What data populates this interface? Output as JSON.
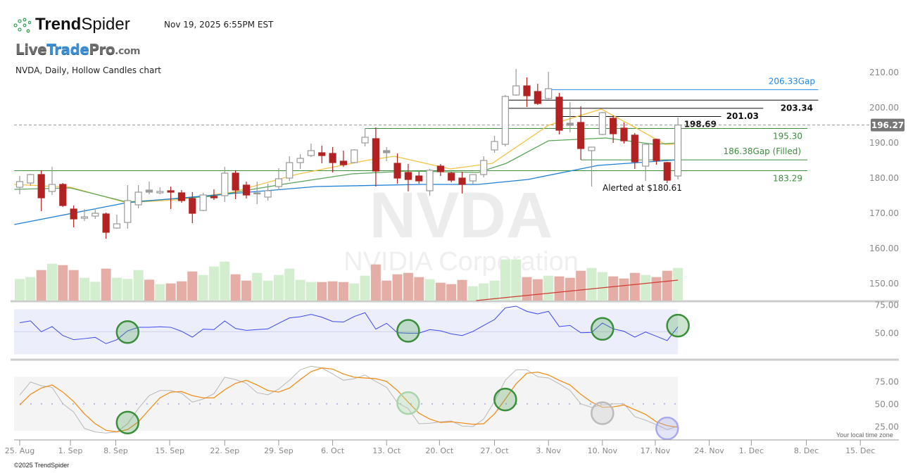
{
  "header": {
    "brand_bold": "Trend",
    "brand_light": "Spider",
    "timestamp": "Nov 19, 2025 6:55PM EST",
    "site_logo": {
      "live": "Live",
      "trade": "Trade",
      "pro": "Pro",
      "com": ".com"
    },
    "chart_title": "NVDA, Daily, Hollow Candles chart"
  },
  "watermark": {
    "symbol": "NVDA",
    "company": "NVIDIA Corporation"
  },
  "alert_text": "Alerted at $180.61",
  "footer": {
    "copyright": "©2025 TrendSpider",
    "timezone_note": "Your local time zone"
  },
  "colors": {
    "up_candle": "#999999",
    "down_candle": "#b22222",
    "neutral_candle": "#9a9a9a",
    "ma_fast": "#f5c342",
    "ma_mid": "#5aa55a",
    "ma_slow": "#1e7fd6",
    "vol_up": "#d3edcf",
    "vol_down": "#e4aea6",
    "vol_ma": "#d03a30",
    "rsi": "#3b47f0",
    "stoch_k": "#b8b8b8",
    "stoch_d": "#f08a10",
    "level_blue": "#1e88e5",
    "level_black": "#111111",
    "level_green": "#3d8b3d",
    "price_badge": "#777777"
  },
  "chart_data": {
    "type": "candlestick",
    "symbol": "NVDA",
    "interval": "Daily",
    "price_axis": {
      "range": [
        145,
        212
      ],
      "ticks": [
        "210.00",
        "200.00",
        "190.00",
        "180.00",
        "170.00",
        "160.00",
        "150.00"
      ],
      "tick_values": [
        210,
        200,
        190,
        180,
        170,
        160,
        150
      ]
    },
    "current_price": {
      "value": 196.27,
      "label": "196.27"
    },
    "x_ticks": [
      {
        "label": "25. Aug",
        "bar": 1
      },
      {
        "label": "1. Sep",
        "bar": 5.7
      },
      {
        "label": "8. Sep",
        "bar": 9.9
      },
      {
        "label": "15. Sep",
        "bar": 14.9
      },
      {
        "label": "22. Sep",
        "bar": 20
      },
      {
        "label": "29. Sep",
        "bar": 25
      },
      {
        "label": "6. Oct",
        "bar": 30
      },
      {
        "label": "13. Oct",
        "bar": 35
      },
      {
        "label": "20. Oct",
        "bar": 39.9
      },
      {
        "label": "27. Oct",
        "bar": 45
      },
      {
        "label": "3. Nov",
        "bar": 50
      },
      {
        "label": "10. Nov",
        "bar": 55
      },
      {
        "label": "17. Nov",
        "bar": 59.9
      },
      {
        "label": "24. Nov",
        "bar": 64.9
      },
      {
        "label": "1. Dec",
        "bar": 68.8
      },
      {
        "label": "8. Dec",
        "bar": 73.9
      },
      {
        "label": "15. Dec",
        "bar": 78.9
      }
    ],
    "candles_ohlc": [
      [
        178.6,
        181.8,
        176.6,
        180.2
      ],
      [
        179.8,
        182.4,
        179.0,
        182.2
      ],
      [
        182.2,
        183.4,
        171.8,
        175.6
      ],
      [
        177.4,
        184.4,
        176.4,
        179.4
      ],
      [
        179.4,
        179.8,
        173.0,
        173.4
      ],
      [
        172.4,
        173.4,
        167.2,
        169.6
      ],
      [
        169.8,
        172.4,
        169.0,
        170.2
      ],
      [
        170.4,
        172.6,
        169.6,
        171.2
      ],
      [
        171.0,
        171.4,
        164.0,
        165.8
      ],
      [
        167.0,
        170.8,
        166.8,
        168.2
      ],
      [
        168.6,
        179.2,
        166.8,
        174.8
      ],
      [
        173.6,
        179.2,
        172.6,
        177.2
      ],
      [
        177.2,
        180.2,
        176.6,
        177.8
      ],
      [
        177.0,
        178.6,
        176.6,
        177.4
      ],
      [
        177.6,
        178.8,
        172.4,
        177.2
      ],
      [
        177.0,
        177.8,
        174.2,
        174.8
      ],
      [
        175.4,
        177.2,
        168.4,
        171.2
      ],
      [
        172.0,
        177.0,
        171.8,
        176.4
      ],
      [
        176.0,
        178.0,
        175.0,
        175.6
      ],
      [
        176.2,
        184.4,
        174.4,
        182.6
      ],
      [
        182.6,
        183.4,
        175.2,
        177.8
      ],
      [
        179.2,
        180.2,
        175.4,
        176.4
      ],
      [
        176.8,
        180.2,
        173.8,
        177.0
      ],
      [
        175.8,
        179.6,
        174.8,
        177.6
      ],
      [
        178.8,
        184.0,
        177.8,
        181.0
      ],
      [
        181.2,
        187.4,
        180.4,
        185.6
      ],
      [
        185.6,
        188.0,
        183.8,
        186.8
      ],
      [
        187.6,
        191.0,
        187.2,
        189.0
      ],
      [
        188.4,
        190.4,
        185.4,
        187.6
      ],
      [
        188.2,
        190.0,
        182.8,
        185.6
      ],
      [
        186.0,
        189.0,
        184.4,
        185.0
      ],
      [
        185.6,
        189.4,
        185.4,
        189.2
      ],
      [
        191.2,
        195.2,
        190.2,
        192.8
      ],
      [
        192.4,
        195.6,
        178.8,
        183.2
      ],
      [
        188.4,
        190.0,
        186.0,
        189.0
      ],
      [
        185.4,
        188.2,
        179.6,
        181.2
      ],
      [
        182.8,
        185.2,
        177.4,
        180.8
      ],
      [
        181.8,
        183.0,
        179.6,
        180.4
      ],
      [
        177.6,
        183.8,
        176.2,
        183.4
      ],
      [
        184.6,
        185.2,
        181.8,
        183.0
      ],
      [
        182.6,
        183.0,
        180.0,
        180.6
      ],
      [
        181.2,
        183.0,
        176.8,
        179.4
      ],
      [
        180.4,
        182.2,
        179.4,
        182.2
      ],
      [
        182.2,
        187.4,
        181.4,
        186.2
      ],
      [
        189.2,
        193.2,
        188.4,
        191.6
      ],
      [
        190.8,
        204.8,
        190.2,
        204.4
      ],
      [
        204.8,
        212.2,
        204.6,
        207.4
      ],
      [
        207.4,
        209.8,
        201.4,
        204.6
      ],
      [
        205.8,
        208.0,
        202.0,
        202.4
      ],
      [
        203.8,
        211.4,
        203.6,
        206.6
      ],
      [
        204.2,
        205.4,
        193.6,
        194.8
      ],
      [
        196.2,
        202.8,
        194.2,
        196.8
      ],
      [
        197.0,
        201.6,
        186.4,
        189.6
      ],
      [
        189.0,
        190.0,
        178.8,
        190.0
      ],
      [
        193.6,
        200.0,
        193.4,
        199.8
      ],
      [
        198.2,
        199.0,
        191.2,
        193.8
      ],
      [
        195.4,
        197.0,
        191.0,
        191.8
      ],
      [
        193.4,
        194.0,
        183.8,
        185.8
      ],
      [
        184.6,
        190.8,
        180.4,
        190.8
      ],
      [
        192.2,
        192.4,
        185.0,
        186.2
      ],
      [
        185.6,
        185.8,
        179.8,
        180.6
      ],
      [
        181.8,
        198.4,
        180.8,
        196.27
      ]
    ],
    "neutral_candles": [
      13,
      23,
      35,
      52
    ],
    "moving_averages": [
      {
        "name": "fast",
        "points": [
          [
            0.5,
            179.4
          ],
          [
            5.7,
            178.6
          ],
          [
            10.9,
            174.2
          ],
          [
            15.5,
            175.0
          ],
          [
            20.7,
            177.2
          ],
          [
            26.6,
            182.2
          ],
          [
            33.1,
            186.2
          ],
          [
            35.7,
            187.4
          ],
          [
            40.9,
            183.8
          ],
          [
            44.8,
            185.4
          ],
          [
            50,
            196.2
          ],
          [
            54.9,
            200.8
          ],
          [
            57.9,
            195.8
          ],
          [
            60.8,
            190.8
          ],
          [
            62,
            190.8
          ]
        ]
      },
      {
        "name": "mid",
        "points": [
          [
            0.5,
            178.0
          ],
          [
            5.7,
            178.4
          ],
          [
            10.9,
            174.4
          ],
          [
            18.7,
            176.0
          ],
          [
            25.3,
            179.4
          ],
          [
            31.8,
            182.4
          ],
          [
            37,
            183.2
          ],
          [
            43.5,
            182.8
          ],
          [
            46.1,
            185.4
          ],
          [
            50,
            191.8
          ],
          [
            55.3,
            192.6
          ],
          [
            59.8,
            190.8
          ],
          [
            62,
            191.2
          ]
        ]
      },
      {
        "name": "slow",
        "points": [
          [
            0.5,
            168.0
          ],
          [
            10.9,
            174.2
          ],
          [
            20.7,
            176.8
          ],
          [
            28.5,
            178.8
          ],
          [
            38.3,
            179.4
          ],
          [
            43.5,
            179.4
          ],
          [
            48.1,
            180.8
          ],
          [
            54.6,
            184.8
          ],
          [
            62,
            186.4
          ]
        ]
      }
    ],
    "levels": [
      {
        "value": 206.33,
        "label": "206.33Gap",
        "color": "blue",
        "from_bar": 50,
        "to_bar": 75
      },
      {
        "value": 203.34,
        "label": "203.34",
        "color": "black",
        "from_bar": 46,
        "to_bar": 75
      },
      {
        "value": 201.03,
        "label": "201.03",
        "color": "black",
        "from_bar": 46,
        "to_bar": 69.9
      },
      {
        "value": 198.69,
        "label": "198.69",
        "color": "black",
        "from_bar": 51,
        "to_bar": 66
      },
      {
        "value": 195.3,
        "label": "195.30",
        "color": "green",
        "from_bar": 33,
        "to_bar": 74
      },
      {
        "value": 186.38,
        "label": "186.38Gap (Filled)",
        "color": "green",
        "from_bar": 53,
        "to_bar": 74
      },
      {
        "value": 183.29,
        "label": "183.29",
        "color": "green",
        "from_bar": 0.5,
        "to_bar": 74
      }
    ],
    "volume_relative": [
      92,
      100,
      130,
      157,
      151,
      130,
      97,
      80,
      136,
      97,
      92,
      130,
      89,
      70,
      73,
      82,
      124,
      109,
      145,
      166,
      112,
      85,
      118,
      85,
      109,
      136,
      88,
      79,
      79,
      82,
      79,
      73,
      106,
      154,
      85,
      112,
      118,
      100,
      91,
      76,
      70,
      88,
      61,
      73,
      85,
      175,
      175,
      100,
      91,
      106,
      103,
      97,
      127,
      139,
      121,
      103,
      94,
      118,
      109,
      100,
      127,
      139
    ],
    "volume_direction": "ggrgrrggrgggrgrrrgggrrggggggrrrggrrrrrgrrrgggggrrgrrrggrrrgrrg",
    "volume_ma_relative": [
      [
        43.3,
        0
      ],
      [
        62,
        87
      ]
    ],
    "rsi": {
      "axis_ticks": [
        "75.00",
        "50.00"
      ],
      "tick_values": [
        75,
        50
      ],
      "band": [
        30,
        70
      ],
      "values": [
        58,
        59.6,
        50,
        54.6,
        46.6,
        42.9,
        43.9,
        45,
        39.4,
        42.9,
        50.8,
        53.9,
        53.9,
        54.4,
        53.9,
        50.4,
        45.2,
        52.3,
        51.9,
        59.6,
        52.9,
        51.2,
        51.9,
        52.5,
        57.5,
        62.3,
        63.3,
        65.4,
        62.9,
        59.1,
        58.6,
        63.5,
        66.9,
        52.3,
        57.5,
        49.1,
        48.7,
        48.7,
        51.9,
        50.8,
        48.1,
        46.6,
        50.2,
        55.6,
        60.8,
        71.2,
        72.7,
        68.1,
        65.8,
        68.1,
        54.6,
        55.6,
        49.1,
        49.4,
        57.7,
        52.5,
        50.4,
        45.2,
        49.8,
        46,
        42.1,
        54.4
      ],
      "signals": [
        {
          "bar": 11,
          "value": 49.7,
          "style": "green"
        },
        {
          "bar": 37,
          "value": 50.8,
          "style": "green"
        },
        {
          "bar": 55,
          "value": 52.5,
          "style": "green"
        },
        {
          "bar": 62,
          "value": 55.4,
          "style": "green"
        }
      ]
    },
    "stochastic": {
      "axis_ticks": [
        "75.00",
        "50.00",
        "25.00"
      ],
      "tick_values": [
        75,
        50,
        25
      ],
      "band": [
        20,
        80
      ],
      "k": [
        59.7,
        74.2,
        70.1,
        68.3,
        50,
        40.9,
        22.7,
        18.8,
        17.5,
        18.8,
        27.9,
        44.8,
        59.1,
        64.8,
        64.8,
        61.7,
        51.9,
        55.2,
        61.2,
        79.5,
        76.9,
        72.7,
        62.3,
        60,
        66.4,
        76.1,
        87.8,
        91.7,
        89.8,
        83.1,
        76.1,
        77.9,
        82,
        74.8,
        68.3,
        51.3,
        44.8,
        27.9,
        28.4,
        30,
        31,
        25.3,
        24.8,
        33.1,
        52.6,
        76.1,
        87.8,
        87.8,
        80,
        78.7,
        72.2,
        64.8,
        50,
        46.1,
        48.7,
        50,
        50,
        35.7,
        31.8,
        26.8,
        21.4,
        25.3
      ],
      "d": [
        48.7,
        60.5,
        67.5,
        70.9,
        63,
        52.6,
        38.8,
        27.9,
        20.6,
        18.8,
        21.4,
        30,
        43.5,
        56.6,
        63,
        63.6,
        59.1,
        56.6,
        56.6,
        65.6,
        72.7,
        76.1,
        70.9,
        64.8,
        63,
        67.5,
        76.9,
        85.7,
        89.8,
        88.6,
        83.1,
        79.5,
        78.7,
        77.9,
        74.8,
        64.8,
        51.9,
        39.6,
        33.1,
        29.2,
        30,
        28.7,
        27.3,
        27.9,
        38.8,
        55.2,
        72.2,
        83.9,
        85.2,
        82,
        76.1,
        70.9,
        60.5,
        51.9,
        46.1,
        46.6,
        48.7,
        43.5,
        38.3,
        30,
        25.8,
        24
      ],
      "signals": [
        {
          "bar": 11,
          "value": 29.2,
          "style": "green"
        },
        {
          "bar": 37,
          "value": 50.8,
          "style": "lightgreen"
        },
        {
          "bar": 46,
          "value": 54.7,
          "style": "green"
        },
        {
          "bar": 55,
          "value": 39.6,
          "style": "gray"
        },
        {
          "bar": 61,
          "value": 22.7,
          "style": "lavender"
        }
      ]
    }
  }
}
